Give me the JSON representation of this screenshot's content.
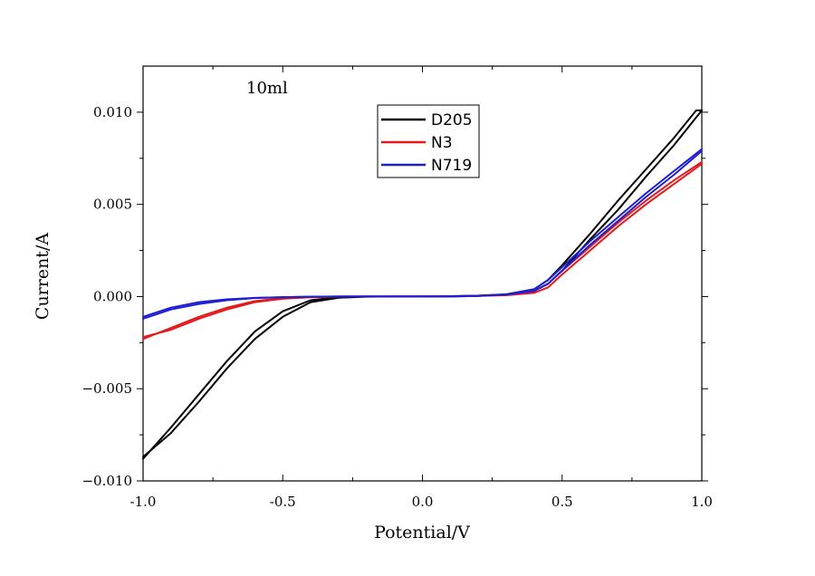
{
  "chart_data": {
    "type": "line",
    "title": "",
    "annotation": "10ml",
    "xlabel": "Potential/V",
    "ylabel": "Current/A",
    "xlim": [
      -1.0,
      1.0
    ],
    "ylim": [
      -0.01,
      0.0125
    ],
    "xticks": [
      -1.0,
      -0.5,
      0.0,
      0.5,
      1.0
    ],
    "xtick_labels": [
      "-1.0",
      "-0.5",
      "0.0",
      "0.5",
      "1.0"
    ],
    "yticks": [
      -0.01,
      -0.005,
      0.0,
      0.005,
      0.01
    ],
    "ytick_labels": [
      "-0.010",
      "-0.005",
      "0.000",
      "0.005",
      "0.010"
    ],
    "grid": false,
    "legend_position": "top-center",
    "series": [
      {
        "name": "D205",
        "color": "#000000",
        "forward": {
          "x": [
            -1.0,
            -0.9,
            -0.8,
            -0.7,
            -0.6,
            -0.5,
            -0.4,
            -0.3,
            -0.2,
            -0.1,
            0.0,
            0.1,
            0.2,
            0.3,
            0.4,
            0.45,
            0.5,
            0.6,
            0.7,
            0.8,
            0.9,
            0.98,
            1.0
          ],
          "y": [
            -0.0088,
            -0.0071,
            -0.0053,
            -0.0035,
            -0.0019,
            -0.0008,
            -0.0002,
            -3e-05,
            0.0,
            0.0,
            0.0,
            2e-05,
            5e-05,
            0.00012,
            0.0004,
            0.0009,
            0.0017,
            0.0034,
            0.0052,
            0.0069,
            0.0086,
            0.0101,
            0.0101
          ]
        },
        "reverse": {
          "x": [
            1.0,
            0.9,
            0.8,
            0.7,
            0.6,
            0.5,
            0.45,
            0.4,
            0.3,
            0.2,
            0.1,
            0.0,
            -0.1,
            -0.2,
            -0.3,
            -0.4,
            -0.5,
            -0.6,
            -0.7,
            -0.8,
            -0.9,
            -1.0
          ],
          "y": [
            0.0101,
            0.0082,
            0.0065,
            0.0047,
            0.0031,
            0.0014,
            0.0007,
            0.0003,
            0.0001,
            3e-05,
            0.0,
            0.0,
            0.0,
            -1e-05,
            -6e-05,
            -0.0003,
            -0.0011,
            -0.0023,
            -0.0039,
            -0.0057,
            -0.0074,
            -0.0087
          ]
        }
      },
      {
        "name": "N3",
        "color": "#e3191c",
        "forward": {
          "x": [
            -1.0,
            -0.9,
            -0.8,
            -0.7,
            -0.6,
            -0.5,
            -0.4,
            -0.3,
            -0.2,
            -0.1,
            0.0,
            0.1,
            0.2,
            0.3,
            0.4,
            0.45,
            0.5,
            0.6,
            0.7,
            0.8,
            0.9,
            1.0
          ],
          "y": [
            -0.0023,
            -0.0017,
            -0.0011,
            -0.0006,
            -0.00025,
            -8e-05,
            -2e-05,
            0.0,
            0.0,
            0.0,
            0.0,
            1e-05,
            3e-05,
            7e-05,
            0.0002,
            0.0005,
            0.0012,
            0.0025,
            0.0038,
            0.005,
            0.0061,
            0.0072
          ]
        },
        "reverse": {
          "x": [
            1.0,
            0.9,
            0.8,
            0.7,
            0.6,
            0.5,
            0.45,
            0.4,
            0.3,
            0.2,
            0.1,
            0.0,
            -0.1,
            -0.2,
            -0.3,
            -0.4,
            -0.5,
            -0.6,
            -0.7,
            -0.8,
            -0.9,
            -1.0
          ],
          "y": [
            0.0073,
            0.0063,
            0.0052,
            0.004,
            0.0027,
            0.0014,
            0.0007,
            0.0003,
            0.0001,
            4e-05,
            1e-05,
            0.0,
            0.0,
            0.0,
            -1e-05,
            -4e-05,
            -0.00012,
            -0.0003,
            -0.0007,
            -0.0012,
            -0.0018,
            -0.0022
          ]
        }
      },
      {
        "name": "N719",
        "color": "#1e1ed2",
        "forward": {
          "x": [
            -1.0,
            -0.9,
            -0.8,
            -0.7,
            -0.6,
            -0.5,
            -0.4,
            -0.3,
            -0.2,
            -0.1,
            0.0,
            0.1,
            0.2,
            0.3,
            0.4,
            0.45,
            0.5,
            0.6,
            0.7,
            0.8,
            0.9,
            1.0
          ],
          "y": [
            -0.0012,
            -0.0007,
            -0.0004,
            -0.0002,
            -8e-05,
            -3e-05,
            -1e-05,
            0.0,
            0.0,
            0.0,
            0.0,
            1e-05,
            4e-05,
            0.0001,
            0.0003,
            0.0007,
            0.0014,
            0.0028,
            0.0041,
            0.0054,
            0.0066,
            0.0079
          ]
        },
        "reverse": {
          "x": [
            1.0,
            0.9,
            0.8,
            0.7,
            0.6,
            0.5,
            0.45,
            0.4,
            0.3,
            0.2,
            0.1,
            0.0,
            -0.1,
            -0.2,
            -0.3,
            -0.4,
            -0.5,
            -0.6,
            -0.7,
            -0.8,
            -0.9,
            -1.0
          ],
          "y": [
            0.008,
            0.0068,
            0.0056,
            0.0043,
            0.003,
            0.0016,
            0.0009,
            0.0004,
            0.00012,
            4e-05,
            1e-05,
            0.0,
            0.0,
            0.0,
            0.0,
            -1e-05,
            -3e-05,
            -7e-05,
            -0.00015,
            -0.0003,
            -0.0006,
            -0.0011
          ]
        }
      }
    ]
  }
}
